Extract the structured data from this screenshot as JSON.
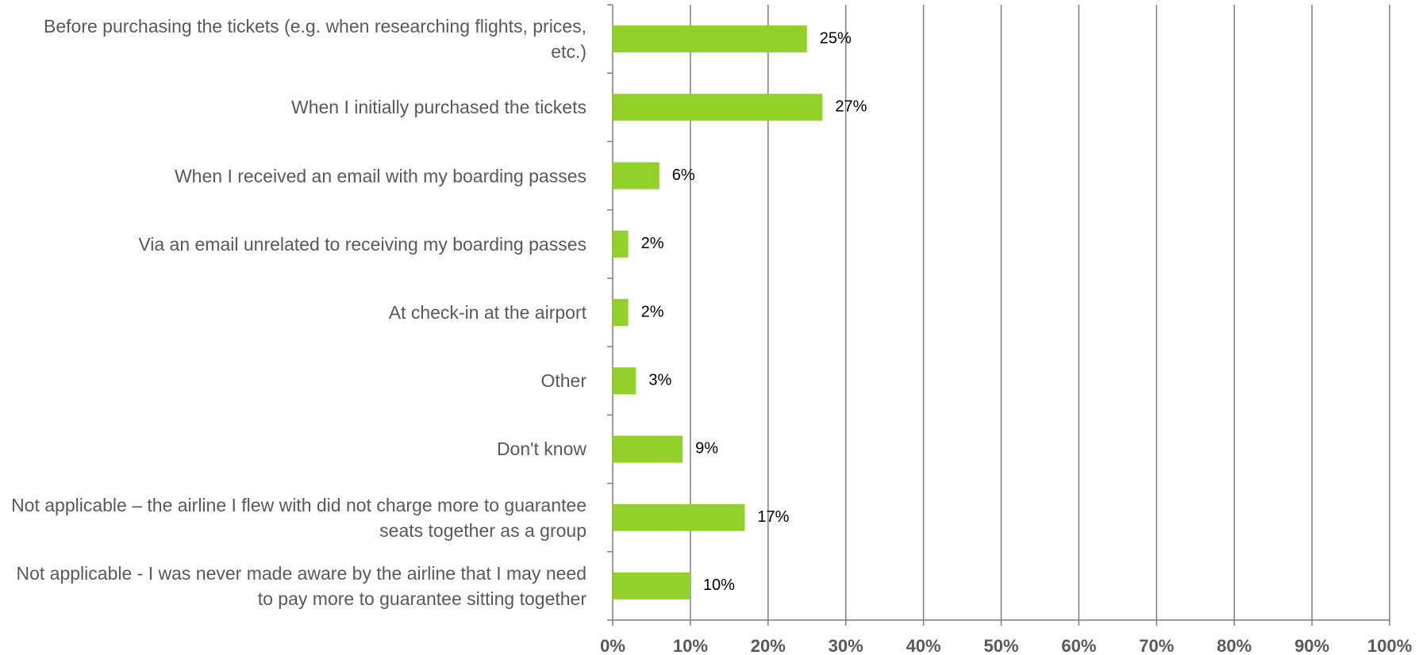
{
  "chart_data": {
    "type": "barh",
    "categories": [
      "Before purchasing the tickets (e.g. when researching flights, prices, etc.)",
      "When I initially purchased the tickets",
      "When I received an email with my boarding passes",
      "Via an email unrelated to receiving my boarding passes",
      "At check-in at the airport",
      "Other",
      "Don't know",
      "Not applicable – the airline I flew with did not charge more to guarantee seats together as a group",
      "Not applicable - I was never made aware by the airline that I may need to pay more to guarantee sitting together"
    ],
    "values": [
      25,
      27,
      6,
      2,
      2,
      3,
      9,
      17,
      10
    ],
    "value_labels": [
      "25%",
      "27%",
      "6%",
      "2%",
      "2%",
      "3%",
      "9%",
      "17%",
      "10%"
    ],
    "color": "#92d12a",
    "xlim": [
      0,
      100
    ],
    "xticks": [
      {
        "value": 0,
        "label": "0%"
      },
      {
        "value": 10,
        "label": "10%"
      },
      {
        "value": 20,
        "label": "20%"
      },
      {
        "value": 30,
        "label": "30%"
      },
      {
        "value": 40,
        "label": "40%"
      },
      {
        "value": 50,
        "label": "50%"
      },
      {
        "value": 60,
        "label": "60%"
      },
      {
        "value": 70,
        "label": "70%"
      },
      {
        "value": 80,
        "label": "80%"
      },
      {
        "value": 90,
        "label": "90%"
      },
      {
        "value": 100,
        "label": "100%"
      }
    ],
    "grid": true
  }
}
